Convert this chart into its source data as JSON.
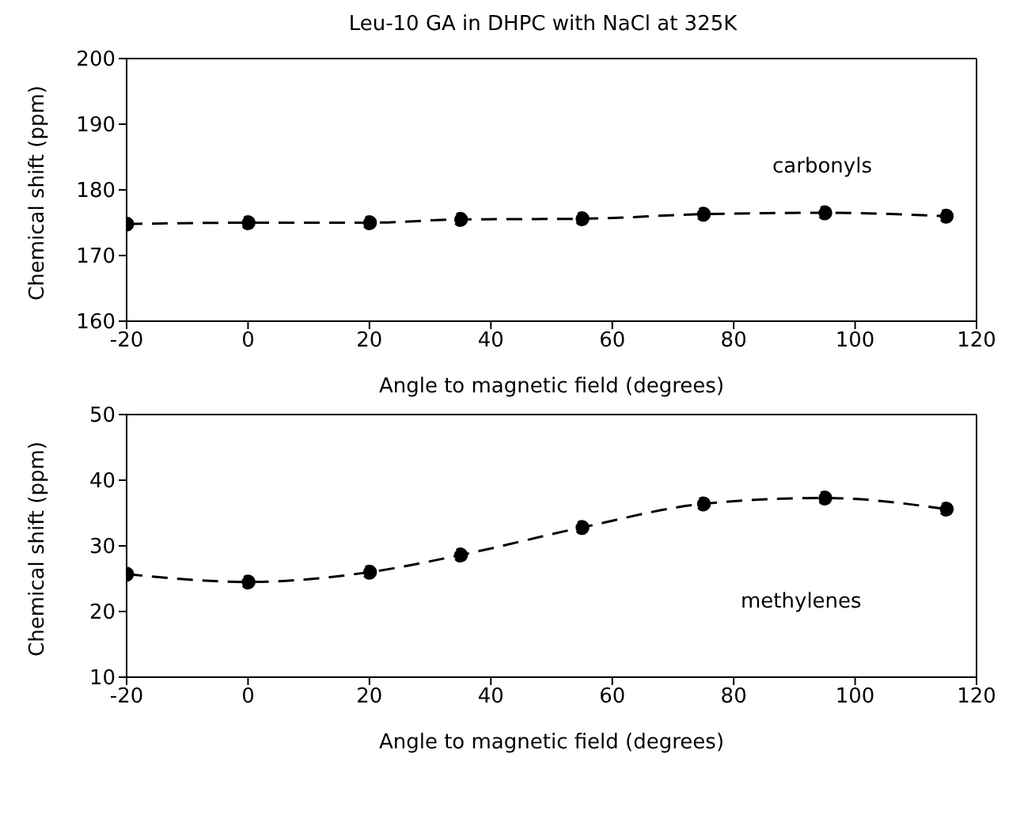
{
  "chart_data": [
    {
      "type": "line",
      "title": "Leu-10 GA in DHPC with NaCl at 325K",
      "xlabel": "Angle to magnetic field (degrees)",
      "ylabel": "Chemical shift (ppm)",
      "x": [
        -20,
        0,
        20,
        35,
        55,
        75,
        95,
        115
      ],
      "series": [
        {
          "color": "#000000",
          "values": [
            174.8,
            175,
            175,
            175.5,
            175.6,
            176.3,
            176.5,
            176
          ]
        }
      ],
      "xlim": [
        -20,
        120
      ],
      "xticks": [
        -20,
        0,
        20,
        40,
        60,
        80,
        100,
        120
      ],
      "ylim": [
        160,
        200
      ],
      "yticks": [
        160,
        170,
        180,
        190,
        200
      ],
      "annotations": [
        "carbonyls"
      ],
      "marker": "circle",
      "line_style": "dashed",
      "grid": false,
      "legend": false
    },
    {
      "type": "line",
      "xlabel": "Angle to magnetic field (degrees)",
      "ylabel": "Chemical shift (ppm)",
      "x": [
        -20,
        0,
        20,
        35,
        55,
        75,
        95,
        115
      ],
      "series": [
        {
          "color": "#000000",
          "values": [
            25.7,
            24.5,
            26,
            28.6,
            32.8,
            36.4,
            37.3,
            35.6
          ]
        }
      ],
      "xlim": [
        -20,
        120
      ],
      "xticks": [
        -20,
        0,
        20,
        40,
        60,
        80,
        100,
        120
      ],
      "ylim": [
        10,
        50
      ],
      "yticks": [
        10,
        20,
        30,
        40,
        50
      ],
      "annotations": [
        "methylenes"
      ],
      "marker": "circle",
      "line_style": "dashed",
      "grid": false,
      "legend": false
    }
  ]
}
